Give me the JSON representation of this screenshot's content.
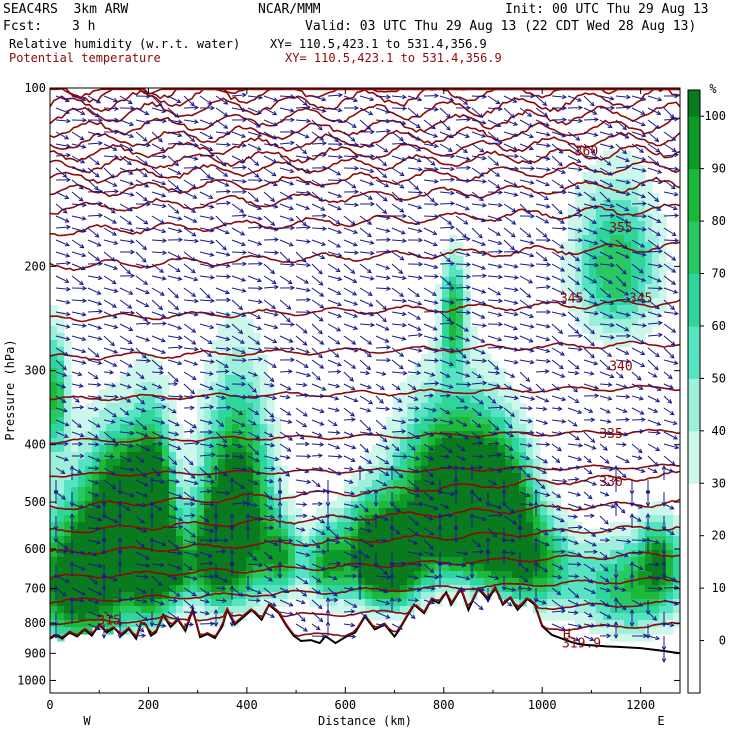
{
  "header": {
    "model": "SEAC4RS  3km ARW",
    "org": "NCAR/MMM",
    "init": "Init: 00 UTC Thu 29 Aug 13",
    "fcst_label": "Fcst:",
    "fcst_value": "3 h",
    "valid": "Valid: 03 UTC Thu 29 Aug 13 (22 CDT Wed 28 Aug 13)",
    "field1": "Relative humidity (w.r.t. water)",
    "xy1": "XY= 110.5,423.1 to 531.4,356.9",
    "field2": "Potential temperature",
    "xy2": "XY= 110.5,423.1 to 531.4,356.9"
  },
  "colors": {
    "theta_line": "#8b0a0a",
    "vector": "#1a1a8c",
    "terrain": "#000000",
    "rh_scale": [
      "#ffffff",
      "#ffffff",
      "#ffffff",
      "#ffffff",
      "#cdf7ea",
      "#9ff0da",
      "#55e3c2",
      "#2fd69c",
      "#28c864",
      "#1cb83a",
      "#0e9a28",
      "#0a7a1e",
      "#065a12"
    ]
  },
  "chart_data": {
    "type": "heatmap",
    "title": "",
    "xlabel": "Distance (km)",
    "ylabel": "Pressure (hPa)",
    "xlim": [
      0,
      1280
    ],
    "ylim": [
      1050,
      100
    ],
    "y_scale": "log",
    "x_ticks": [
      "0",
      "200",
      "400",
      "600",
      "800",
      "1000",
      "1200"
    ],
    "x_tick_values": [
      0,
      200,
      400,
      600,
      800,
      1000,
      1200
    ],
    "y_ticks": [
      "100",
      "200",
      "300",
      "400",
      "500",
      "600",
      "700",
      "800",
      "900",
      "1000"
    ],
    "y_tick_values": [
      100,
      200,
      300,
      400,
      500,
      600,
      700,
      800,
      900,
      1000
    ],
    "x_end_labels": {
      "left": "W",
      "right": "E"
    },
    "colorbar": {
      "unit": "%",
      "labels": [
        "0",
        "10",
        "20",
        "30",
        "40",
        "50",
        "60",
        "70",
        "80",
        "90",
        "100"
      ],
      "levels": [
        -10,
        -5,
        0,
        5,
        10,
        15,
        20,
        25,
        30,
        35,
        40,
        45,
        50,
        55,
        60,
        65,
        70,
        75,
        80,
        85,
        90,
        95,
        100,
        105
      ]
    },
    "theta_contour_labels": [
      {
        "text": "360",
        "x": 1090,
        "p": 130
      },
      {
        "text": "355",
        "x": 1160,
        "p": 175
      },
      {
        "text": "345",
        "x": 1060,
        "p": 230
      },
      {
        "text": "345",
        "x": 1200,
        "p": 230
      },
      {
        "text": "340",
        "x": 1160,
        "p": 300
      },
      {
        "text": "335",
        "x": 1140,
        "p": 390
      },
      {
        "text": "330",
        "x": 1140,
        "p": 470
      },
      {
        "text": "315",
        "x": 120,
        "p": 805
      },
      {
        "text": "H",
        "x": 1050,
        "p": 850
      },
      {
        "text": "319.9",
        "x": 1080,
        "p": 880
      }
    ],
    "theta_levels": [
      315,
      320,
      325,
      330,
      335,
      340,
      345,
      350,
      355,
      360,
      365,
      370,
      380,
      390,
      400,
      420
    ]
  }
}
